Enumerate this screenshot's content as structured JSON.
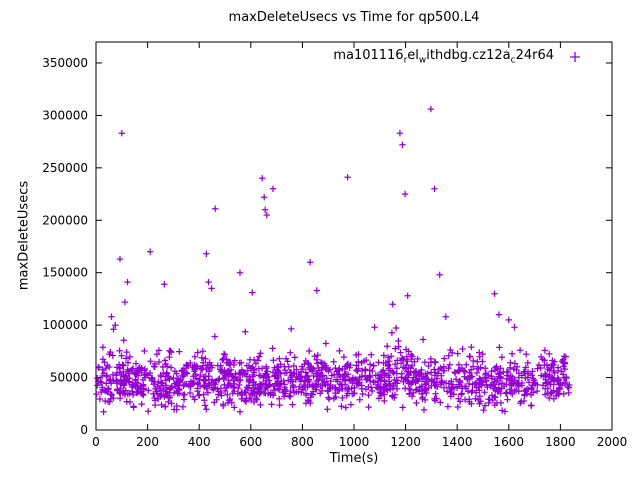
{
  "chart_data": {
    "type": "scatter",
    "title": "maxDeleteUsecs vs Time for qp500.L4",
    "xlabel": "Time(s)",
    "ylabel": "maxDeleteUsecs",
    "xlim": [
      0,
      2000
    ],
    "ylim": [
      0,
      370000
    ],
    "xticks": [
      0,
      200,
      400,
      600,
      800,
      1000,
      1200,
      1400,
      1600,
      1800,
      2000
    ],
    "yticks": [
      0,
      50000,
      100000,
      150000,
      200000,
      250000,
      300000,
      350000
    ],
    "grid": false,
    "legend_position": "top-right-inside",
    "marker": "plus",
    "color": "#9400d3",
    "series_name": "ma101116_rel_withdbg.cz12a_c24r64",
    "legend_segments": [
      {
        "text": "ma101116"
      },
      {
        "text": "r",
        "sub": true
      },
      {
        "text": "el"
      },
      {
        "text": "w",
        "sub": true
      },
      {
        "text": "ithdbg.cz12a"
      },
      {
        "text": "c",
        "sub": true
      },
      {
        "text": "24r64"
      }
    ],
    "band_summary": "dense scatter band of ~1400 points between y=20000 and y=95000, centered near 47000, spanning x=0..1830",
    "band": {
      "count": 1400,
      "x_range": [
        2,
        1835
      ],
      "y_center": 47000,
      "y_sigma": 11500,
      "y_min": 16000,
      "fringe_prob": 0.035,
      "fringe_extra": 50000,
      "seed": 42
    },
    "outliers": [
      [
        60,
        108000
      ],
      [
        68,
        96000
      ],
      [
        75,
        100000
      ],
      [
        93,
        163000
      ],
      [
        100,
        283000
      ],
      [
        112,
        122000
      ],
      [
        122,
        141000
      ],
      [
        210,
        170000
      ],
      [
        265,
        139000
      ],
      [
        428,
        168000
      ],
      [
        436,
        141000
      ],
      [
        448,
        135000
      ],
      [
        462,
        211000
      ],
      [
        558,
        150000
      ],
      [
        606,
        131000
      ],
      [
        644,
        240000
      ],
      [
        652,
        222000
      ],
      [
        656,
        210000
      ],
      [
        662,
        205000
      ],
      [
        686,
        230000
      ],
      [
        830,
        160000
      ],
      [
        856,
        133000
      ],
      [
        975,
        241000
      ],
      [
        1080,
        98000
      ],
      [
        1150,
        120000
      ],
      [
        1178,
        283000
      ],
      [
        1188,
        272000
      ],
      [
        1198,
        225000
      ],
      [
        1208,
        128000
      ],
      [
        1298,
        306000
      ],
      [
        1312,
        230000
      ],
      [
        1332,
        148000
      ],
      [
        1356,
        108000
      ],
      [
        1545,
        130000
      ],
      [
        1562,
        110000
      ],
      [
        1600,
        105000
      ],
      [
        1622,
        98000
      ]
    ]
  }
}
